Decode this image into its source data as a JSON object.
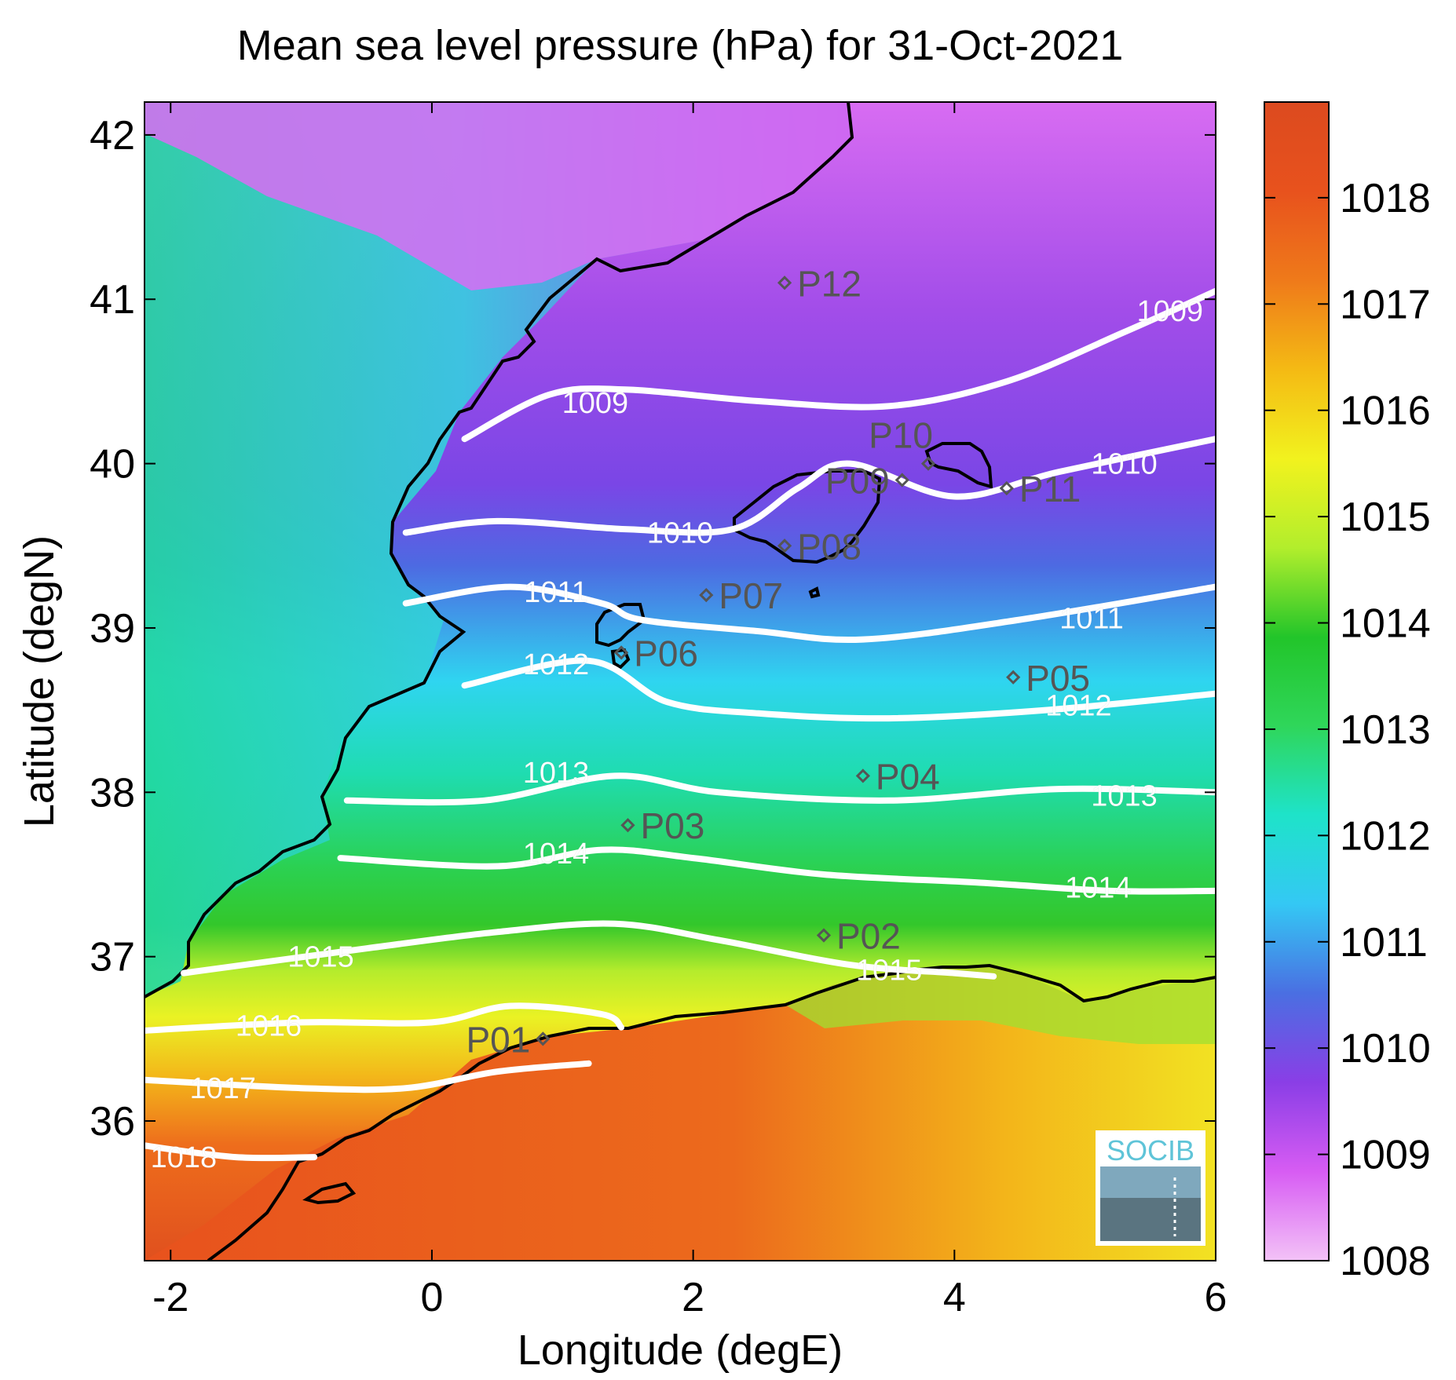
{
  "title": "Mean sea level pressure (hPa) for 31-Oct-2021",
  "xlabel": "Longitude (degE)",
  "ylabel": "Latitude (degN)",
  "logo_text": "SOCIB",
  "colors": {
    "coastline": "#000000",
    "isobar": "#ffffff",
    "station_marker": "#555555",
    "colormap": [
      "#f3c2f7",
      "#d75cf3",
      "#8a3ee6",
      "#4a6fe2",
      "#34c8f4",
      "#1ee3c9",
      "#2fd65a",
      "#22c52a",
      "#b2ee2c",
      "#f2f21e",
      "#f4ba14",
      "#ef7a1a",
      "#e8521d",
      "#dc4a1f"
    ]
  },
  "chart_data": {
    "type": "heatmap",
    "title": "Mean sea level pressure (hPa) for 31-Oct-2021",
    "xlabel": "Longitude (degE)",
    "ylabel": "Latitude (degN)",
    "xlim": [
      -2.2,
      6.0
    ],
    "ylim": [
      35.15,
      42.2
    ],
    "xticks": [
      -2,
      0,
      2,
      4,
      6
    ],
    "yticks": [
      36,
      37,
      38,
      39,
      40,
      41,
      42
    ],
    "colorbar": {
      "range": [
        1008,
        1018.9
      ],
      "ticks": [
        1008,
        1009,
        1010,
        1011,
        1012,
        1013,
        1014,
        1015,
        1016,
        1017,
        1018
      ]
    },
    "isobars": [
      {
        "level": 1009,
        "label": "1009",
        "points": [
          [
            0.25,
            40.15
          ],
          [
            0.9,
            40.42
          ],
          [
            1.5,
            40.45
          ],
          [
            2.5,
            40.38
          ],
          [
            3.5,
            40.35
          ],
          [
            4.4,
            40.5
          ],
          [
            5.3,
            40.8
          ],
          [
            6.0,
            41.05
          ]
        ],
        "labels": [
          [
            1.25,
            40.37
          ],
          [
            5.65,
            40.93
          ]
        ]
      },
      {
        "level": 1010,
        "label": "1010",
        "points": [
          [
            -0.2,
            39.58
          ],
          [
            0.5,
            39.65
          ],
          [
            1.5,
            39.6
          ],
          [
            2.3,
            39.6
          ],
          [
            2.8,
            39.85
          ],
          [
            3.2,
            40.0
          ],
          [
            4.0,
            39.8
          ],
          [
            4.8,
            39.95
          ],
          [
            6.0,
            40.15
          ]
        ],
        "labels": [
          [
            1.9,
            39.58
          ],
          [
            5.3,
            40.0
          ]
        ],
        "breaks": [
          [
            2.95,
            39.54
          ],
          [
            3.55,
            39.56
          ]
        ]
      },
      {
        "level": 1011,
        "label": "1011",
        "points": [
          [
            -0.2,
            39.15
          ],
          [
            0.6,
            39.25
          ],
          [
            1.3,
            39.15
          ],
          [
            1.6,
            39.05
          ],
          [
            2.5,
            38.98
          ],
          [
            3.3,
            38.93
          ],
          [
            4.5,
            39.05
          ],
          [
            6.0,
            39.25
          ]
        ],
        "labels": [
          [
            0.95,
            39.22
          ],
          [
            5.05,
            39.06
          ]
        ]
      },
      {
        "level": 1012,
        "label": "1012",
        "points": [
          [
            0.25,
            38.65
          ],
          [
            1.2,
            38.8
          ],
          [
            1.8,
            38.55
          ],
          [
            2.5,
            38.48
          ],
          [
            3.5,
            38.45
          ],
          [
            4.7,
            38.5
          ],
          [
            6.0,
            38.6
          ]
        ],
        "labels": [
          [
            0.95,
            38.78
          ],
          [
            4.95,
            38.53
          ]
        ]
      },
      {
        "level": 1013,
        "label": "1013",
        "points": [
          [
            -0.65,
            37.95
          ],
          [
            0.4,
            37.95
          ],
          [
            1.4,
            38.1
          ],
          [
            2.2,
            38.0
          ],
          [
            3.5,
            37.95
          ],
          [
            4.8,
            38.02
          ],
          [
            6.0,
            38.0
          ]
        ],
        "labels": [
          [
            0.95,
            38.12
          ],
          [
            5.3,
            37.98
          ]
        ]
      },
      {
        "level": 1014,
        "label": "1014",
        "points": [
          [
            -0.7,
            37.6
          ],
          [
            0.5,
            37.55
          ],
          [
            1.3,
            37.65
          ],
          [
            2.0,
            37.6
          ],
          [
            3.0,
            37.5
          ],
          [
            4.2,
            37.45
          ],
          [
            5.2,
            37.4
          ],
          [
            6.0,
            37.4
          ]
        ],
        "labels": [
          [
            0.95,
            37.63
          ],
          [
            5.1,
            37.42
          ]
        ]
      },
      {
        "level": 1015,
        "label": "1015",
        "points": [
          [
            -1.9,
            36.9
          ],
          [
            -0.5,
            37.05
          ],
          [
            0.5,
            37.15
          ],
          [
            1.4,
            37.2
          ],
          [
            2.2,
            37.1
          ],
          [
            3.2,
            36.95
          ],
          [
            4.0,
            36.9
          ],
          [
            4.3,
            36.88
          ]
        ],
        "labels": [
          [
            -0.85,
            37.0
          ],
          [
            3.5,
            36.92
          ]
        ]
      },
      {
        "level": 1016,
        "label": "1016",
        "points": [
          [
            -2.2,
            36.55
          ],
          [
            -1.0,
            36.6
          ],
          [
            0.0,
            36.6
          ],
          [
            0.6,
            36.7
          ],
          [
            1.3,
            36.65
          ],
          [
            1.45,
            36.57
          ]
        ],
        "labels": [
          [
            -1.25,
            36.58
          ]
        ]
      },
      {
        "level": 1017,
        "label": "1017",
        "points": [
          [
            -2.2,
            36.25
          ],
          [
            -1.0,
            36.2
          ],
          [
            -0.2,
            36.2
          ],
          [
            0.5,
            36.3
          ],
          [
            1.2,
            36.35
          ]
        ],
        "labels": [
          [
            -1.6,
            36.2
          ]
        ]
      },
      {
        "level": 1018,
        "label": "1018",
        "points": [
          [
            -2.2,
            35.85
          ],
          [
            -1.5,
            35.78
          ],
          [
            -0.9,
            35.78
          ]
        ],
        "labels": [
          [
            -1.9,
            35.78
          ]
        ]
      }
    ],
    "stations": [
      {
        "id": "P01",
        "lon": 0.85,
        "lat": 36.5,
        "label_side": "left"
      },
      {
        "id": "P02",
        "lon": 3.0,
        "lat": 37.13,
        "label_side": "right"
      },
      {
        "id": "P03",
        "lon": 1.5,
        "lat": 37.8,
        "label_side": "right"
      },
      {
        "id": "P04",
        "lon": 3.3,
        "lat": 38.1,
        "label_side": "right"
      },
      {
        "id": "P05",
        "lon": 4.45,
        "lat": 38.7,
        "label_side": "right"
      },
      {
        "id": "P06",
        "lon": 1.45,
        "lat": 38.85,
        "label_side": "right"
      },
      {
        "id": "P07",
        "lon": 2.1,
        "lat": 39.2,
        "label_side": "right"
      },
      {
        "id": "P08",
        "lon": 2.7,
        "lat": 39.5,
        "label_side": "right"
      },
      {
        "id": "P09",
        "lon": 3.6,
        "lat": 39.9,
        "label_side": "left"
      },
      {
        "id": "P10",
        "lon": 3.8,
        "lat": 40.0,
        "label_side": "above"
      },
      {
        "id": "P11",
        "lon": 4.4,
        "lat": 39.85,
        "label_side": "right"
      },
      {
        "id": "P12",
        "lon": 2.7,
        "lat": 41.1,
        "label_side": "right"
      }
    ]
  }
}
